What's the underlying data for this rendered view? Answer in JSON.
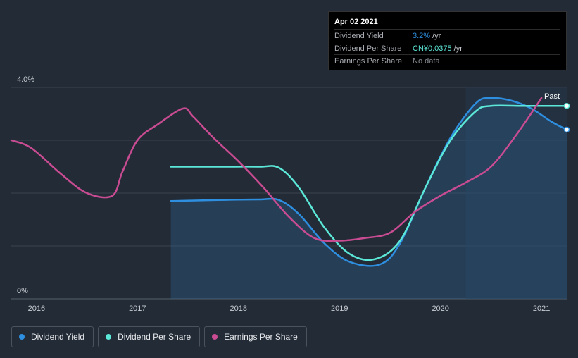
{
  "tooltip": {
    "date": "Apr 02 2021",
    "rows": [
      {
        "label": "Dividend Yield",
        "value": "3.2%",
        "unit": "/yr"
      },
      {
        "label": "Dividend Per Share",
        "value": "CN¥0.0375",
        "unit": "/yr"
      },
      {
        "label": "Earnings Per Share",
        "value": "No data",
        "unit": ""
      }
    ]
  },
  "legend": [
    {
      "label": "Dividend Yield",
      "color": "#2e8fe0"
    },
    {
      "label": "Dividend Per Share",
      "color": "#5ce8d8"
    },
    {
      "label": "Earnings Per Share",
      "color": "#c94c93"
    }
  ],
  "past_label": "Past",
  "chart_data": {
    "type": "line",
    "y_tick_labels": [
      "4.0%",
      "0%"
    ],
    "ylim": [
      0,
      4.0
    ],
    "xlim": [
      2015.75,
      2021.25
    ],
    "x_ticks": [
      2016,
      2017,
      2018,
      2019,
      2020,
      2021
    ],
    "x_tick_labels": [
      "2016",
      "2017",
      "2018",
      "2019",
      "2020",
      "2021"
    ],
    "grid": true,
    "legend_position": "bottom-left",
    "forecast_region_start": 2020.25,
    "series": [
      {
        "name": "Dividend Yield",
        "color": "#2e8fe0",
        "filled": true,
        "points": [
          [
            2017.33,
            1.85
          ],
          [
            2017.8,
            1.87
          ],
          [
            2018.2,
            1.88
          ],
          [
            2018.4,
            1.87
          ],
          [
            2018.6,
            1.6
          ],
          [
            2018.85,
            1.05
          ],
          [
            2019.1,
            0.7
          ],
          [
            2019.4,
            0.65
          ],
          [
            2019.6,
            1.05
          ],
          [
            2019.85,
            2.1
          ],
          [
            2020.1,
            3.05
          ],
          [
            2020.35,
            3.7
          ],
          [
            2020.5,
            3.8
          ],
          [
            2020.7,
            3.75
          ],
          [
            2020.9,
            3.6
          ],
          [
            2021.1,
            3.35
          ],
          [
            2021.25,
            3.2
          ]
        ]
      },
      {
        "name": "Dividend Per Share",
        "color": "#5ce8d8",
        "points": [
          [
            2017.33,
            2.5
          ],
          [
            2017.8,
            2.5
          ],
          [
            2018.2,
            2.5
          ],
          [
            2018.4,
            2.48
          ],
          [
            2018.6,
            2.1
          ],
          [
            2018.85,
            1.35
          ],
          [
            2019.1,
            0.85
          ],
          [
            2019.35,
            0.75
          ],
          [
            2019.6,
            1.1
          ],
          [
            2019.85,
            2.1
          ],
          [
            2020.1,
            3.0
          ],
          [
            2020.35,
            3.55
          ],
          [
            2020.5,
            3.65
          ],
          [
            2020.8,
            3.65
          ],
          [
            2021.0,
            3.65
          ],
          [
            2021.25,
            3.65
          ]
        ]
      },
      {
        "name": "Earnings Per Share",
        "color": "#c94c93",
        "points": [
          [
            2015.75,
            3.0
          ],
          [
            2015.95,
            2.85
          ],
          [
            2016.25,
            2.35
          ],
          [
            2016.5,
            2.0
          ],
          [
            2016.75,
            1.95
          ],
          [
            2016.85,
            2.4
          ],
          [
            2017.0,
            3.0
          ],
          [
            2017.2,
            3.3
          ],
          [
            2017.45,
            3.6
          ],
          [
            2017.55,
            3.45
          ],
          [
            2017.75,
            3.05
          ],
          [
            2018.0,
            2.6
          ],
          [
            2018.25,
            2.1
          ],
          [
            2018.5,
            1.55
          ],
          [
            2018.75,
            1.15
          ],
          [
            2019.0,
            1.1
          ],
          [
            2019.25,
            1.15
          ],
          [
            2019.5,
            1.25
          ],
          [
            2019.75,
            1.65
          ],
          [
            2020.0,
            1.95
          ],
          [
            2020.25,
            2.2
          ],
          [
            2020.5,
            2.5
          ],
          [
            2020.75,
            3.1
          ],
          [
            2021.0,
            3.8
          ]
        ]
      }
    ]
  }
}
